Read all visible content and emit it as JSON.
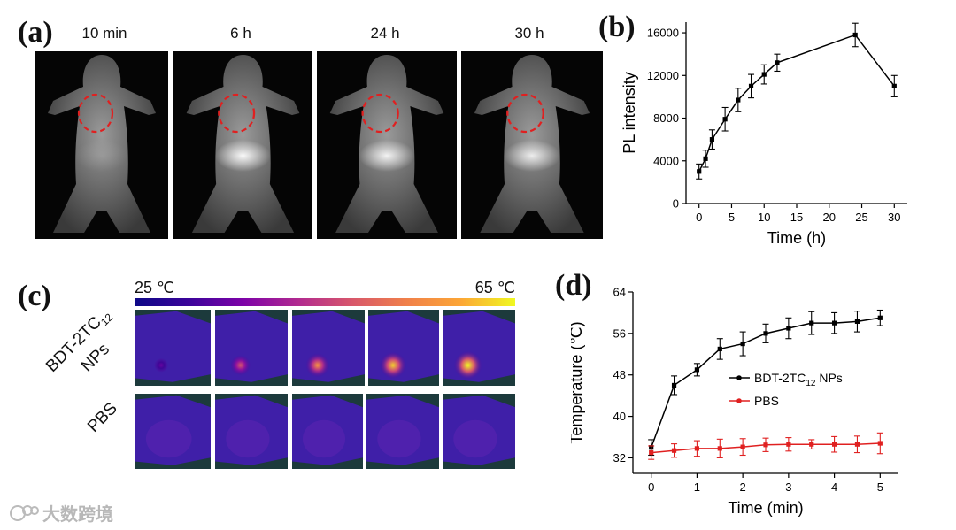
{
  "panel_labels": {
    "a": "(a)",
    "b": "(b)",
    "c": "(c)",
    "d": "(d)"
  },
  "panel_a": {
    "timepoints": [
      "10 min",
      "6 h",
      "24 h",
      "30 h"
    ],
    "tumor_marker_color": "#e02020",
    "bladder_brightness": [
      0.15,
      0.95,
      0.9,
      0.85
    ]
  },
  "panel_c": {
    "scale_min": "25 ℃",
    "scale_max": "65 ℃",
    "row_labels": {
      "nps_main": "BDT-2TC",
      "nps_sub": "12",
      "nps_line2": "NPs",
      "pbs": "PBS"
    },
    "hotspot_intensity": [
      0.2,
      0.55,
      0.75,
      0.9,
      1.0
    ]
  },
  "chart_data": [
    {
      "type": "line",
      "title": "",
      "xlabel": "Time (h)",
      "ylabel": "PL intensity",
      "xlim": [
        -2,
        32
      ],
      "ylim": [
        0,
        17000
      ],
      "xticks": [
        0,
        5,
        10,
        15,
        20,
        25,
        30
      ],
      "yticks": [
        0,
        4000,
        8000,
        12000,
        16000
      ],
      "color": "#000000",
      "series": [
        {
          "name": "PL intensity",
          "x": [
            0,
            1,
            2,
            4,
            6,
            8,
            10,
            12,
            24,
            30
          ],
          "values": [
            3000,
            4200,
            6000,
            7900,
            9700,
            11000,
            12100,
            13200,
            15800,
            11000
          ],
          "err": [
            700,
            800,
            900,
            1100,
            1100,
            1100,
            900,
            800,
            1100,
            1000
          ]
        }
      ]
    },
    {
      "type": "line",
      "title": "",
      "xlabel": "Time (min)",
      "ylabel": "Temperature (℃)",
      "xlim": [
        -0.4,
        5.4
      ],
      "ylim": [
        29,
        64
      ],
      "xticks": [
        0,
        1,
        2,
        3,
        4,
        5
      ],
      "yticks": [
        32,
        40,
        48,
        56,
        64
      ],
      "legend": "upper-center",
      "series": [
        {
          "name": "BDT-2TC",
          "name_sub": "12",
          "name_suffix": " NPs",
          "color": "#000000",
          "x": [
            0,
            0.5,
            1,
            1.5,
            2,
            2.5,
            3,
            3.5,
            4,
            4.5,
            5
          ],
          "values": [
            34,
            46,
            49,
            53,
            54,
            56,
            57,
            58,
            58,
            58.3,
            59
          ],
          "err": [
            1.5,
            1.8,
            1.2,
            2.0,
            2.3,
            1.8,
            2.0,
            2.2,
            2.0,
            2.0,
            1.5
          ]
        },
        {
          "name": "PBS",
          "color": "#e02020",
          "x": [
            0,
            0.5,
            1,
            1.5,
            2,
            2.5,
            3,
            3.5,
            4,
            4.5,
            5
          ],
          "values": [
            33,
            33.4,
            33.8,
            33.8,
            34.1,
            34.5,
            34.6,
            34.6,
            34.6,
            34.6,
            34.8
          ],
          "err": [
            1.3,
            1.3,
            1.5,
            1.8,
            1.6,
            1.3,
            1.3,
            0.9,
            1.5,
            1.6,
            2.0
          ]
        }
      ]
    }
  ],
  "watermark": {
    "text": "大数跨境"
  }
}
